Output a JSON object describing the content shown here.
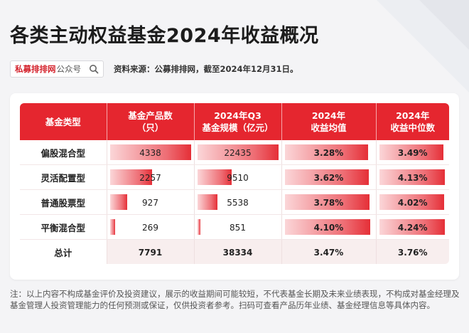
{
  "title": "各类主动权益基金2024年收益概况",
  "source": {
    "brand": "私募排排网",
    "suffix": "公众号",
    "text": "资料来源：公募排排网，截至2024年12月31日。"
  },
  "table": {
    "headers": [
      {
        "line1": "基金类型",
        "line2": ""
      },
      {
        "line1": "基金产品数",
        "line2": "（只）"
      },
      {
        "line1": "2024年Q3",
        "line2": "基金规模（亿元）"
      },
      {
        "line1": "2024年",
        "line2": "收益均值"
      },
      {
        "line1": "2024年",
        "line2": "收益中位数"
      }
    ],
    "rows": [
      {
        "type": "偏股混合型",
        "count": "4338",
        "count_n": 4338,
        "scale": "22435",
        "scale_n": 22435,
        "mean": "3.28%",
        "mean_n": 3.28,
        "median": "3.49%",
        "median_n": 3.49
      },
      {
        "type": "灵活配置型",
        "count": "2257",
        "count_n": 2257,
        "scale": "9510",
        "scale_n": 9510,
        "mean": "3.62%",
        "mean_n": 3.62,
        "median": "4.13%",
        "median_n": 4.13
      },
      {
        "type": "普通股票型",
        "count": "927",
        "count_n": 927,
        "scale": "5538",
        "scale_n": 5538,
        "mean": "3.78%",
        "mean_n": 3.78,
        "median": "4.02%",
        "median_n": 4.02
      },
      {
        "type": "平衡混合型",
        "count": "269",
        "count_n": 269,
        "scale": "851",
        "scale_n": 851,
        "mean": "4.10%",
        "mean_n": 4.1,
        "median": "4.24%",
        "median_n": 4.24
      }
    ],
    "total": {
      "type": "总计",
      "count": "7791",
      "scale": "38334",
      "mean": "3.47%",
      "median": "3.76%"
    }
  },
  "footnote": "注：以上内容不构成基金评价及投资建议，展示的收益期间可能较短，不代表基金长期及未来业绩表现，不构成对基金经理及基金管理人投资管理能力的任何预测或保证，仅供投资者参考。扫码可查看产品历年业绩、基金经理信息等具体内容。",
  "colors": {
    "accent": "#e5262f",
    "bar_start": "#fbd6d8",
    "bar_end": "#e52f37"
  }
}
